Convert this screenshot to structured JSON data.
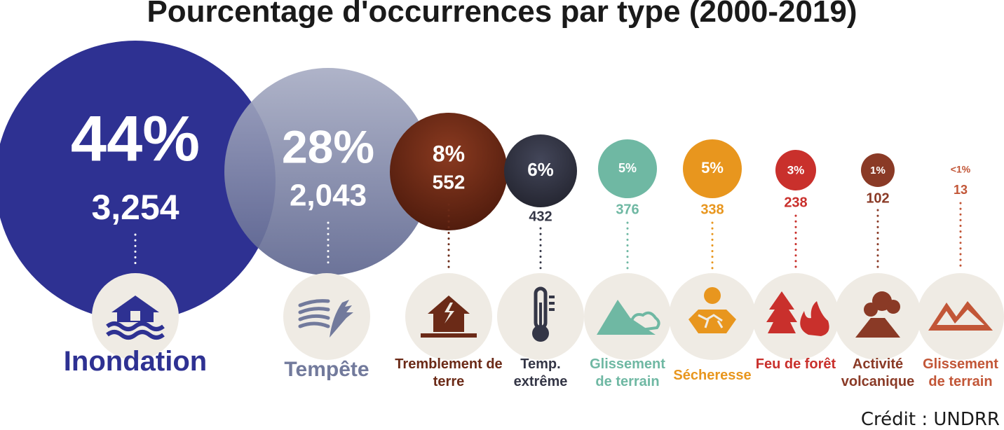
{
  "title": "Pourcentage d'occurrences par type (2000-2019)",
  "credit": "Crédit : UNDRR",
  "chart_data": {
    "type": "bubble",
    "title": "Pourcentage d'occurrences par type (2000-2019)",
    "categories": [
      {
        "label": "Inondation",
        "percent_label": "44%",
        "count_label": "3,254",
        "percent": 44,
        "count": 3254,
        "color": "#2e3192",
        "icon": "flood-house-icon"
      },
      {
        "label": "Tempête",
        "percent_label": "28%",
        "count_label": "2,043",
        "percent": 28,
        "count": 2043,
        "color": "#727a9c",
        "icon": "storm-wind-icon"
      },
      {
        "label": "Tremblement de terre",
        "percent_label": "8%",
        "count_label": "552",
        "percent": 8,
        "count": 552,
        "color": "#6b2a17",
        "icon": "earthquake-house-icon"
      },
      {
        "label": "Temp. extrême",
        "percent_label": "6%",
        "count_label": "432",
        "percent": 6,
        "count": 432,
        "color": "#343646",
        "icon": "thermometer-icon"
      },
      {
        "label": "Glissement de terrain",
        "percent_label": "5%",
        "count_label": "376",
        "percent": 5,
        "count": 376,
        "color": "#6fb8a3",
        "icon": "landslide-icon"
      },
      {
        "label": "Sécheresse",
        "percent_label": "5%",
        "count_label": "338",
        "percent": 5,
        "count": 338,
        "color": "#e8961e",
        "icon": "drought-sun-icon"
      },
      {
        "label": "Feu de forêt",
        "percent_label": "3%",
        "count_label": "238",
        "percent": 3,
        "count": 238,
        "color": "#c9302c",
        "icon": "wildfire-icon"
      },
      {
        "label": "Activité volcanique",
        "percent_label": "1%",
        "count_label": "102",
        "percent": 1,
        "count": 102,
        "color": "#8a3a26",
        "icon": "volcano-icon"
      },
      {
        "label": "Glissement de terrain",
        "percent_label": "<1%",
        "count_label": "13",
        "percent": 0.5,
        "count": 13,
        "color": "#c25637",
        "icon": "mountain-slide-icon"
      }
    ]
  }
}
